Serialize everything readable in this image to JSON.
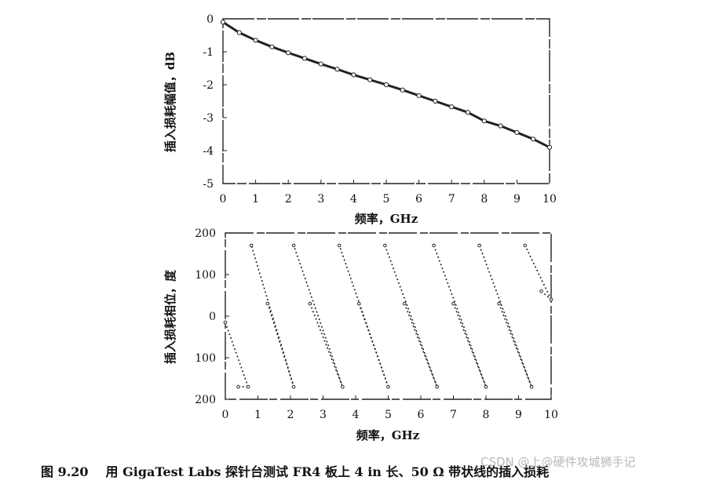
{
  "chart_data": [
    {
      "type": "line",
      "xlabel": "频率，GHz",
      "ylabel": "插入损耗幅值，dB",
      "xlim": [
        0,
        10
      ],
      "ylim": [
        -5,
        0
      ],
      "xticks": [
        "0",
        "1",
        "2",
        "3",
        "4",
        "5",
        "6",
        "7",
        "8",
        "9",
        "10"
      ],
      "yticks": [
        "0",
        "-1",
        "-2",
        "-3",
        "-4",
        "-5"
      ],
      "grid": false,
      "series": [
        {
          "x": [
            0,
            0.5,
            1,
            1.5,
            2,
            2.5,
            3,
            3.5,
            4,
            4.5,
            5,
            5.5,
            6,
            6.5,
            7,
            7.5,
            8,
            8.5,
            9,
            9.5,
            10
          ],
          "values": [
            -0.1,
            -0.42,
            -0.65,
            -0.85,
            -1.03,
            -1.2,
            -1.37,
            -1.53,
            -1.7,
            -1.85,
            -2.0,
            -2.16,
            -2.33,
            -2.5,
            -2.67,
            -2.84,
            -3.1,
            -3.25,
            -3.45,
            -3.65,
            -3.9
          ]
        }
      ]
    },
    {
      "type": "scatter",
      "xlabel": "频率，GHz",
      "ylabel": "插入损耗相位，度",
      "xlim": [
        0,
        10
      ],
      "ylim": [
        -200,
        200
      ],
      "xticks": [
        "0",
        "1",
        "2",
        "3",
        "4",
        "5",
        "6",
        "7",
        "8",
        "9",
        "10"
      ],
      "yticks": [
        "200",
        "100",
        "0",
        "100",
        "200"
      ],
      "grid": false,
      "series": [
        {
          "x": [
            0,
            0.4,
            0.7,
            0.8,
            1.3,
            2.1,
            2.1,
            2.6,
            3.6,
            3.5,
            4.1,
            5.0,
            4.9,
            5.5,
            6.5,
            6.4,
            7.0,
            8.0,
            7.8,
            8.4,
            9.4,
            9.2,
            9.7,
            10.0
          ],
          "values": [
            -15,
            -170,
            -170,
            170,
            30,
            -170,
            170,
            30,
            -170,
            170,
            30,
            -170,
            170,
            30,
            -170,
            170,
            30,
            -170,
            170,
            30,
            -170,
            170,
            60,
            40
          ]
        }
      ]
    }
  ],
  "caption": {
    "number": "图 9.20",
    "text": "用 GigaTest Labs 探针台测试 FR4 板上 4 in 长、50 Ω 带状线的插入损耗"
  },
  "watermark": "CSDN @上@硬件攻城狮手记"
}
